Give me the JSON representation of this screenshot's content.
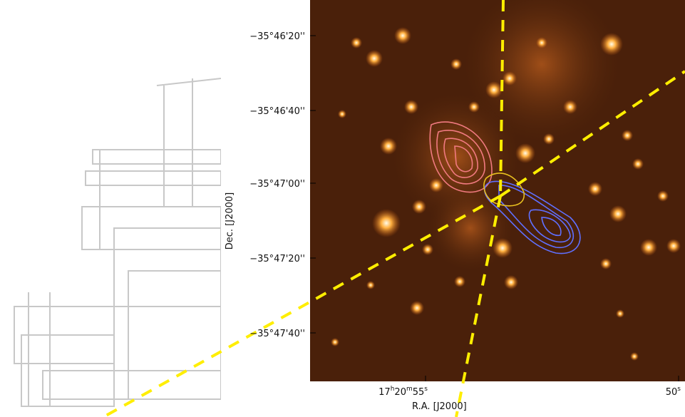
{
  "figure": {
    "y_axis": {
      "title": "Dec. [J2000]",
      "ticks": [
        "−35°46'20''",
        "−35°46'40''",
        "−35°47'00''",
        "−35°47'20''",
        "−35°47'40''"
      ]
    },
    "x_axis": {
      "title": "R.A. [J2000]",
      "ticks": [
        {
          "parts": [
            "17",
            "h",
            "20",
            "m",
            "55",
            "s"
          ]
        },
        {
          "parts": [
            "50",
            "s"
          ]
        }
      ]
    }
  }
}
